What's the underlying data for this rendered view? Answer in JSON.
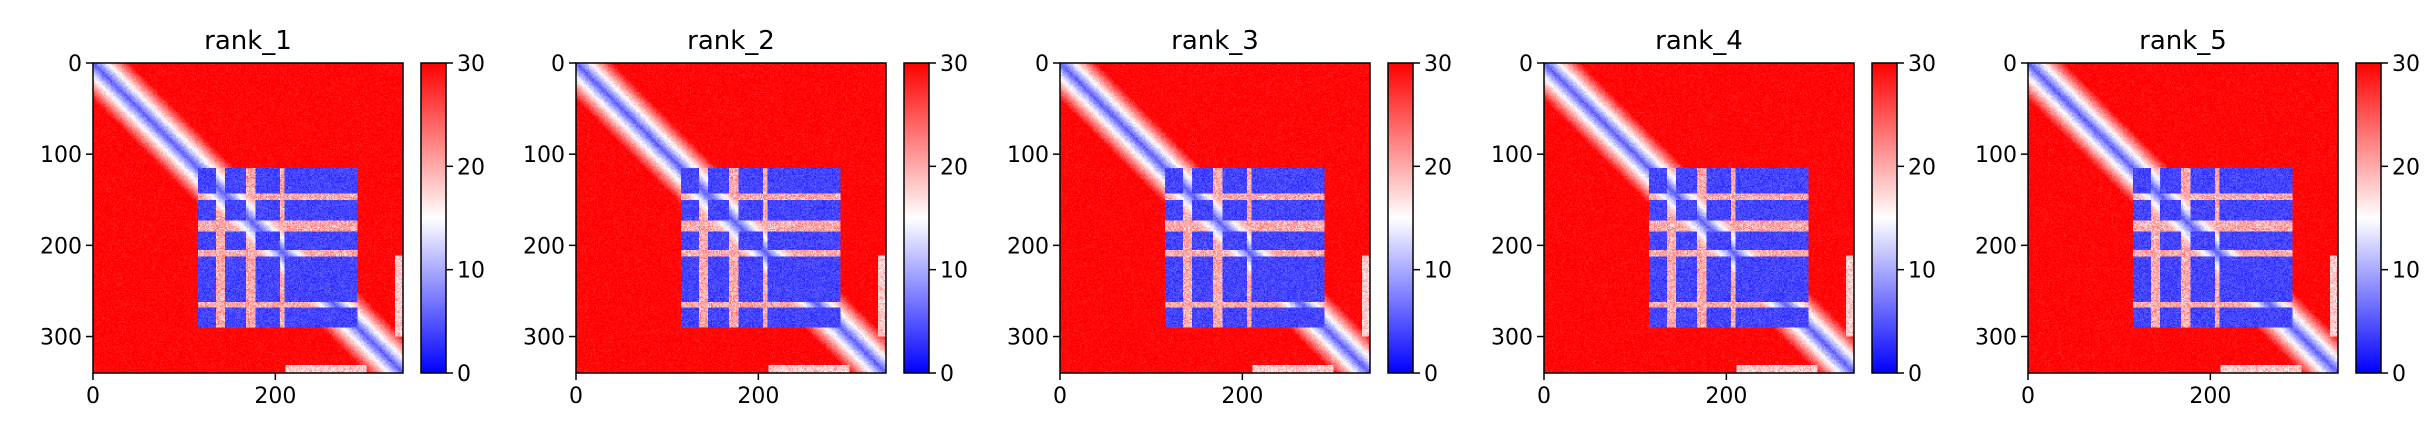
{
  "figure": {
    "cmap": [
      "#0000ff",
      "#ffffff",
      "#ff0000"
    ],
    "panels": [
      {
        "title": "rank_1"
      },
      {
        "title": "rank_2"
      },
      {
        "title": "rank_3"
      },
      {
        "title": "rank_4"
      },
      {
        "title": "rank_5"
      }
    ]
  },
  "chart_data": [
    {
      "type": "heatmap",
      "title": "rank_1",
      "x_ticks": [
        "0",
        "200"
      ],
      "y_ticks": [
        "0",
        "100",
        "200",
        "300"
      ],
      "colorbar_ticks": [
        "0",
        "10",
        "20",
        "30"
      ],
      "xlim": [
        0,
        340
      ],
      "ylim": [
        340,
        0
      ],
      "vmin": 0,
      "vmax": 30,
      "colormap": "bwr",
      "matrix_size": 340,
      "low_blocks": [
        [
          115,
          290
        ]
      ],
      "noise_seed": 1
    },
    {
      "type": "heatmap",
      "title": "rank_2",
      "x_ticks": [
        "0",
        "200"
      ],
      "y_ticks": [
        "0",
        "100",
        "200",
        "300"
      ],
      "colorbar_ticks": [
        "0",
        "10",
        "20",
        "30"
      ],
      "xlim": [
        0,
        340
      ],
      "ylim": [
        340,
        0
      ],
      "vmin": 0,
      "vmax": 30,
      "colormap": "bwr",
      "matrix_size": 340,
      "low_blocks": [
        [
          115,
          290
        ]
      ],
      "noise_seed": 2
    },
    {
      "type": "heatmap",
      "title": "rank_3",
      "x_ticks": [
        "0",
        "200"
      ],
      "y_ticks": [
        "0",
        "100",
        "200",
        "300"
      ],
      "colorbar_ticks": [
        "0",
        "10",
        "20",
        "30"
      ],
      "xlim": [
        0,
        340
      ],
      "ylim": [
        340,
        0
      ],
      "vmin": 0,
      "vmax": 30,
      "colormap": "bwr",
      "matrix_size": 340,
      "low_blocks": [
        [
          115,
          290
        ]
      ],
      "noise_seed": 3
    },
    {
      "type": "heatmap",
      "title": "rank_4",
      "x_ticks": [
        "0",
        "200"
      ],
      "y_ticks": [
        "0",
        "100",
        "200",
        "300"
      ],
      "colorbar_ticks": [
        "0",
        "10",
        "20",
        "30"
      ],
      "xlim": [
        0,
        340
      ],
      "ylim": [
        340,
        0
      ],
      "vmin": 0,
      "vmax": 30,
      "colormap": "bwr",
      "matrix_size": 340,
      "low_blocks": [
        [
          115,
          290
        ]
      ],
      "noise_seed": 4
    },
    {
      "type": "heatmap",
      "title": "rank_5",
      "x_ticks": [
        "0",
        "200"
      ],
      "y_ticks": [
        "0",
        "100",
        "200",
        "300"
      ],
      "colorbar_ticks": [
        "0",
        "10",
        "20",
        "30"
      ],
      "xlim": [
        0,
        340
      ],
      "ylim": [
        340,
        0
      ],
      "vmin": 0,
      "vmax": 30,
      "colormap": "bwr",
      "matrix_size": 340,
      "low_blocks": [
        [
          115,
          290
        ]
      ],
      "noise_seed": 5
    }
  ]
}
